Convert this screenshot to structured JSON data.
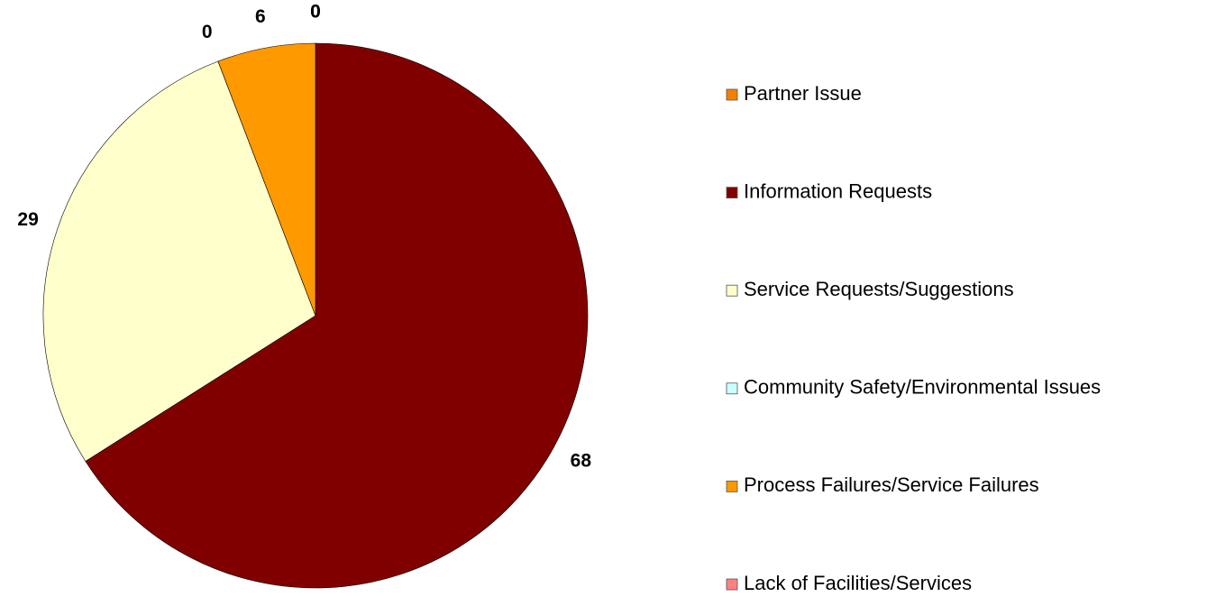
{
  "chart_data": {
    "type": "pie",
    "categories": [
      "Partner Issue",
      "Information Requests",
      "Service Requests/Suggestions",
      "Community Safety/Environmental Issues",
      "Process Failures/Service Failures",
      "Lack of Facilities/Services"
    ],
    "values": [
      0,
      68,
      29,
      0,
      6,
      0
    ],
    "colors": [
      "#f77f00",
      "#800000",
      "#ffffcc",
      "#ccffff",
      "#ff9900",
      "#ff8080"
    ],
    "legend": "right"
  }
}
